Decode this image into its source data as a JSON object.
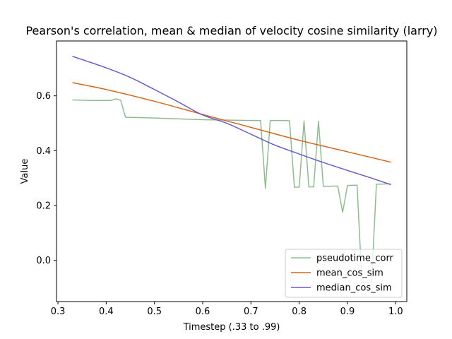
{
  "chart_data": {
    "type": "line",
    "title": "Pearson's correlation, mean & median of velocity cosine similarity (larry)",
    "xlabel": "Timestep (.33 to .99)",
    "ylabel": "Value",
    "xlim": [
      0.297,
      1.023
    ],
    "ylim": [
      -0.15,
      0.8
    ],
    "xticks": [
      0.3,
      0.4,
      0.5,
      0.6,
      0.7,
      0.8,
      0.9,
      1.0
    ],
    "xtick_labels": [
      "0.3",
      "0.4",
      "0.5",
      "0.6",
      "0.7",
      "0.8",
      "0.9",
      "1.0"
    ],
    "yticks": [
      0.0,
      0.2,
      0.4,
      0.6
    ],
    "ytick_labels": [
      "0.0",
      "0.2",
      "0.4",
      "0.6"
    ],
    "grid": false,
    "legend_location": "lower right",
    "series": [
      {
        "name": "pseudotime_corr",
        "color": "#8fbc8f",
        "x": [
          0.33,
          0.35,
          0.37,
          0.39,
          0.41,
          0.42,
          0.43,
          0.44,
          0.5,
          0.6,
          0.7,
          0.72,
          0.73,
          0.74,
          0.75,
          0.76,
          0.77,
          0.78,
          0.79,
          0.8,
          0.81,
          0.82,
          0.83,
          0.84,
          0.85,
          0.86,
          0.87,
          0.88,
          0.89,
          0.9,
          0.91,
          0.92,
          0.93,
          0.94,
          0.95,
          0.96,
          0.97,
          0.98,
          0.99
        ],
        "y": [
          0.585,
          0.584,
          0.583,
          0.583,
          0.583,
          0.589,
          0.584,
          0.522,
          0.519,
          0.513,
          0.51,
          0.51,
          0.263,
          0.51,
          0.51,
          0.51,
          0.51,
          0.509,
          0.267,
          0.267,
          0.508,
          0.268,
          0.268,
          0.507,
          0.27,
          0.27,
          0.271,
          0.271,
          0.175,
          0.273,
          0.274,
          0.274,
          -0.08,
          -0.082,
          -0.08,
          0.278,
          0.278,
          0.279,
          0.279
        ]
      },
      {
        "name": "mean_cos_sim",
        "color": "#d2691e",
        "x": [
          0.33,
          0.4,
          0.5,
          0.6,
          0.7,
          0.8,
          0.9,
          0.99
        ],
        "y": [
          0.648,
          0.623,
          0.58,
          0.532,
          0.485,
          0.438,
          0.396,
          0.358
        ]
      },
      {
        "name": "median_cos_sim",
        "color": "#6a5acd",
        "x": [
          0.33,
          0.4,
          0.45,
          0.5,
          0.55,
          0.6,
          0.65,
          0.7,
          0.75,
          0.8,
          0.85,
          0.9,
          0.95,
          0.99
        ],
        "y": [
          0.744,
          0.702,
          0.667,
          0.623,
          0.577,
          0.53,
          0.5,
          0.46,
          0.42,
          0.388,
          0.357,
          0.328,
          0.3,
          0.276
        ]
      }
    ]
  }
}
